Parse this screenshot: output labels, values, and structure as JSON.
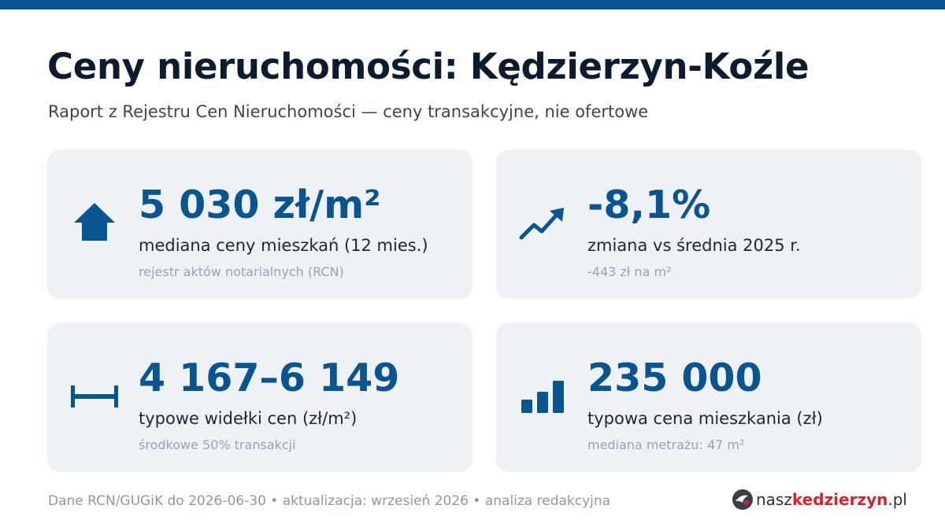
{
  "header": {
    "title": "Ceny nieruchomości: Kędzierzyn-Koźle",
    "subtitle": "Raport z Rejestru Cen Nieruchomości — ceny transakcyjne, nie ofertowe"
  },
  "cards": [
    {
      "icon": "house-icon",
      "value": "5 030 zł/m²",
      "label": "mediana ceny mieszkań (12 mies.)",
      "note": "rejestr aktów notarialnych (RCN)"
    },
    {
      "icon": "trend-arrow-icon",
      "value": "-8,1%",
      "label": "zmiana vs średnia 2025 r.",
      "note": "-443 zł na m²"
    },
    {
      "icon": "range-icon",
      "value": "4 167–6 149",
      "label": "typowe widełki cen (zł/m²)",
      "note": "środkowe 50% transakcji"
    },
    {
      "icon": "bar-chart-icon",
      "value": "235 000",
      "label": "typowa cena mieszkania (zł)",
      "note": "mediana metrażu: 47 m²"
    }
  ],
  "footer": {
    "text": "Dane RCN/GUGiK do 2026-06-30 • aktualizacja: wrzesień 2026 • analiza redakcyjna"
  },
  "brand": {
    "part1": "nasz",
    "part2": "kedzierzyn",
    "part3": ".pl"
  },
  "colors": {
    "accent": "#0a5590",
    "title": "#0d1b2e",
    "card_bg": "#eef1f6",
    "muted": "#9aa3b0",
    "brand_red": "#d4232a"
  }
}
